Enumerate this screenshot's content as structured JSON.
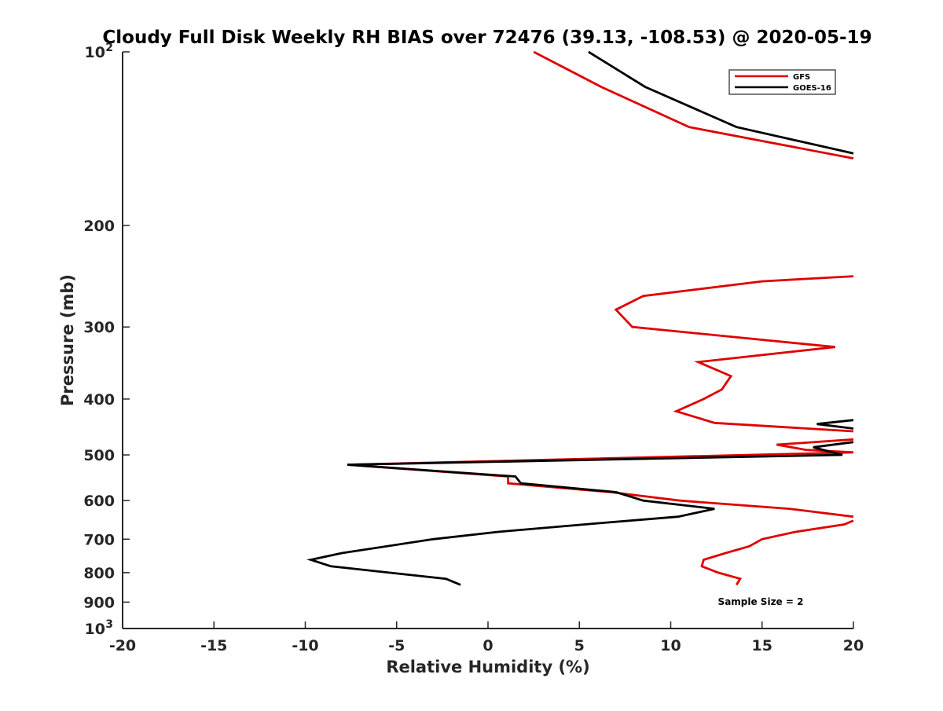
{
  "chart_data": {
    "type": "line",
    "title": "Cloudy Full Disk Weekly RH BIAS over 72476 (39.13, -108.53) @ 2020-05-19",
    "xlabel": "Relative Humidity (%)",
    "ylabel": "Pressure (mb)",
    "xlim": [
      -20,
      20
    ],
    "ylim": [
      100,
      1000
    ],
    "y_scale": "log",
    "y_reversed": true,
    "grid": false,
    "legend_position": "top-right",
    "x_ticks": [
      {
        "value": -20,
        "label": "-20"
      },
      {
        "value": -15,
        "label": "-15"
      },
      {
        "value": -10,
        "label": "-10"
      },
      {
        "value": -5,
        "label": "-5"
      },
      {
        "value": 0,
        "label": "0"
      },
      {
        "value": 5,
        "label": "5"
      },
      {
        "value": 10,
        "label": "10"
      },
      {
        "value": 15,
        "label": "15"
      },
      {
        "value": 20,
        "label": "20"
      }
    ],
    "y_ticks": [
      {
        "value": 100,
        "label": "10",
        "sup": "2"
      },
      {
        "value": 200,
        "label": "200"
      },
      {
        "value": 300,
        "label": "300"
      },
      {
        "value": 400,
        "label": "400"
      },
      {
        "value": 500,
        "label": "500"
      },
      {
        "value": 600,
        "label": "600"
      },
      {
        "value": 700,
        "label": "700"
      },
      {
        "value": 800,
        "label": "800"
      },
      {
        "value": 900,
        "label": "900"
      },
      {
        "value": 1000,
        "label": "10",
        "sup": "3"
      }
    ],
    "annotation": "Sample Size = 2",
    "series": [
      {
        "name": "GFS",
        "color": "#e00000",
        "points": [
          [
            2.5,
            100
          ],
          [
            6.2,
            115
          ],
          [
            11.0,
            135
          ],
          [
            20,
            153
          ],
          [
            null,
            null
          ],
          [
            20,
            245
          ],
          [
            15.0,
            250
          ],
          [
            8.5,
            265
          ],
          [
            7.0,
            280
          ],
          [
            7.9,
            300
          ],
          [
            19.0,
            325
          ],
          [
            11.5,
            345
          ],
          [
            13.3,
            365
          ],
          [
            12.8,
            385
          ],
          [
            11.8,
            400
          ],
          [
            10.3,
            420
          ],
          [
            12.4,
            440
          ],
          [
            20,
            455
          ],
          [
            null,
            null
          ],
          [
            20,
            470
          ],
          [
            15.8,
            480
          ],
          [
            17.4,
            490
          ],
          [
            20,
            495
          ],
          [
            -7.7,
            520
          ],
          [
            1.1,
            545
          ],
          [
            1.1,
            560
          ],
          [
            6.7,
            580
          ],
          [
            10.5,
            600
          ],
          [
            16.5,
            620
          ],
          [
            20,
            640
          ],
          [
            null,
            null
          ],
          [
            20,
            650
          ],
          [
            19.5,
            660
          ],
          [
            16.8,
            680
          ],
          [
            15.0,
            700
          ],
          [
            14.3,
            720
          ],
          [
            13.0,
            740
          ],
          [
            11.8,
            760
          ],
          [
            11.7,
            780
          ],
          [
            12.6,
            800
          ],
          [
            13.8,
            820
          ],
          [
            13.6,
            840
          ]
        ]
      },
      {
        "name": "GOES-16",
        "color": "#000000",
        "points": [
          [
            5.5,
            100
          ],
          [
            8.6,
            115
          ],
          [
            13.6,
            135
          ],
          [
            20,
            150
          ],
          [
            null,
            null
          ],
          [
            20,
            435
          ],
          [
            18.0,
            442
          ],
          [
            20,
            450
          ],
          [
            null,
            null
          ],
          [
            20,
            475
          ],
          [
            17.8,
            485
          ],
          [
            19.4,
            500
          ],
          [
            -7.7,
            520
          ],
          [
            1.5,
            545
          ],
          [
            1.8,
            560
          ],
          [
            7.0,
            580
          ],
          [
            8.5,
            600
          ],
          [
            12.4,
            620
          ],
          [
            10.4,
            640
          ],
          [
            6.5,
            655
          ],
          [
            0.5,
            680
          ],
          [
            -3.0,
            700
          ],
          [
            -8.0,
            740
          ],
          [
            -9.7,
            760
          ],
          [
            -8.6,
            780
          ],
          [
            -2.3,
            820
          ],
          [
            -1.5,
            840
          ]
        ]
      }
    ]
  }
}
